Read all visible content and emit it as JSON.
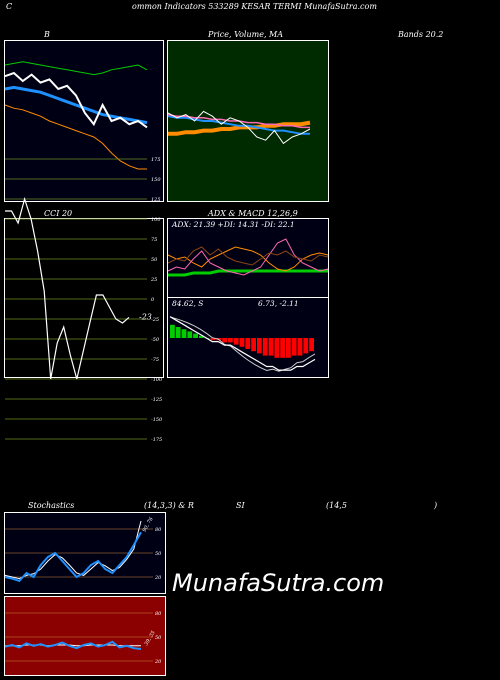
{
  "header": {
    "left": "C",
    "center": "ommon  Indicators 533289 KESAR TERMI MunafaSutra.com"
  },
  "labels": {
    "bb": "B",
    "price_ma": "Price,  Volume, MA",
    "bands": "Bands 20.2",
    "cci": "CCI 20",
    "adx": "ADX  & MACD 12,26,9",
    "adx_values": "ADX: 21.39  +DI: 14.31 -DI: 22.1",
    "macd_left": "84.62,  S",
    "macd_right": "6.73,  -2.11",
    "cci_value": "-23",
    "stoch_title": "Stochastics",
    "stoch_params": "(14,3,3) & R",
    "rsi_title": "SI",
    "rsi_params": "(14,5",
    "rsi_close": ")",
    "stoch_value": "90, 76",
    "rsi_value": "39, 35"
  },
  "watermark": "MunafaSutra.com",
  "colors": {
    "green_bg": "#002a00",
    "navy_bg": "#000014",
    "olive_bg": "#000000",
    "red_bg": "#8b0000",
    "blue": "#1e90ff",
    "orange": "#ff8c00",
    "green": "#00cc00",
    "pink": "#ff69b4"
  },
  "chart_data": [
    {
      "type": "line",
      "name": "bollinger",
      "series": [
        {
          "values": [
            78,
            80,
            75,
            79,
            74,
            76,
            70,
            72,
            66,
            55,
            48,
            60,
            50,
            52,
            48,
            50,
            46
          ]
        },
        {
          "values": [
            70,
            71,
            70,
            69,
            68,
            66,
            64,
            62,
            60,
            58,
            56,
            54,
            53,
            52,
            51,
            50,
            49
          ]
        },
        {
          "values": [
            60,
            58,
            57,
            55,
            53,
            50,
            48,
            46,
            44,
            42,
            40,
            36,
            30,
            25,
            22,
            20,
            20
          ]
        },
        {
          "values": [
            85,
            86,
            87,
            86,
            85,
            84,
            83,
            82,
            81,
            80,
            79,
            80,
            82,
            83,
            84,
            85,
            82
          ]
        }
      ]
    },
    {
      "type": "line",
      "name": "price_volume_ma",
      "series": [
        {
          "values": [
            55,
            52,
            54,
            50,
            56,
            53,
            48,
            52,
            50,
            46,
            40,
            38,
            44,
            36,
            40,
            42,
            45
          ]
        },
        {
          "values": [
            54,
            53,
            53,
            52,
            52,
            51,
            51,
            50,
            50,
            49,
            49,
            48,
            48,
            47,
            47,
            46,
            46
          ]
        },
        {
          "values": [
            53,
            52,
            52,
            51,
            50,
            50,
            49,
            48,
            47,
            47,
            46,
            45,
            44,
            44,
            43,
            42,
            42
          ]
        },
        {
          "values": [
            42,
            42,
            43,
            43,
            44,
            44,
            45,
            45,
            46,
            46,
            46,
            47,
            47,
            48,
            48,
            48,
            49
          ]
        }
      ]
    },
    {
      "type": "line",
      "name": "cci",
      "yticks": [
        "175",
        "150",
        "125",
        "100",
        "75",
        "50",
        "25",
        "0",
        "-25",
        "-50",
        "-75",
        "-100",
        "-125",
        "-150",
        "-175"
      ],
      "values": [
        110,
        110,
        95,
        125,
        100,
        60,
        10,
        -100,
        -55,
        -35,
        -70,
        -100,
        -65,
        -30,
        5,
        5,
        -10,
        -25,
        -30,
        -23
      ]
    },
    {
      "type": "line",
      "name": "adx",
      "series": [
        {
          "values": [
            18,
            20,
            19,
            24,
            26,
            22,
            25,
            21,
            19,
            18,
            17,
            20,
            23,
            22,
            24,
            21,
            20,
            19,
            22,
            21
          ]
        },
        {
          "values": [
            14,
            16,
            15,
            20,
            24,
            18,
            16,
            14,
            13,
            12,
            14,
            16,
            22,
            28,
            30,
            22,
            18,
            16,
            14,
            15
          ]
        },
        {
          "values": [
            22,
            20,
            21,
            18,
            16,
            20,
            22,
            24,
            26,
            25,
            24,
            22,
            18,
            15,
            14,
            16,
            20,
            22,
            23,
            22
          ]
        },
        {
          "values": [
            12,
            12,
            12,
            13,
            13,
            13,
            14,
            14,
            14,
            14,
            14,
            14,
            14,
            14,
            14,
            14,
            14,
            14,
            14,
            14
          ]
        }
      ]
    },
    {
      "type": "bar",
      "name": "macd",
      "values": [
        6,
        5,
        4,
        3,
        2,
        1,
        0,
        -1,
        -1,
        -2,
        -2,
        -3,
        -4,
        -5,
        -6,
        -7,
        -8,
        -8,
        -9,
        -9,
        -9,
        -8,
        -8,
        -7,
        -6
      ]
    },
    {
      "type": "line",
      "name": "stochastics",
      "yticks": [
        "80",
        "50",
        "20"
      ],
      "series": [
        {
          "values": [
            20,
            18,
            15,
            25,
            20,
            35,
            45,
            50,
            40,
            30,
            20,
            25,
            35,
            40,
            30,
            25,
            35,
            45,
            60,
            76
          ]
        },
        {
          "values": [
            22,
            20,
            18,
            22,
            24,
            30,
            40,
            48,
            44,
            35,
            25,
            22,
            30,
            38,
            34,
            28,
            32,
            42,
            55,
            90
          ]
        }
      ]
    },
    {
      "type": "line",
      "name": "rsi",
      "yticks": [
        "80",
        "50",
        "20"
      ],
      "series": [
        {
          "values": [
            38,
            40,
            37,
            42,
            39,
            41,
            38,
            40,
            43,
            39,
            36,
            40,
            42,
            38,
            40,
            44,
            37,
            39,
            36,
            35
          ]
        },
        {
          "values": [
            39,
            39,
            39,
            40,
            40,
            40,
            39,
            40,
            40,
            40,
            39,
            39,
            40,
            40,
            40,
            40,
            39,
            39,
            39,
            39
          ]
        }
      ]
    }
  ]
}
